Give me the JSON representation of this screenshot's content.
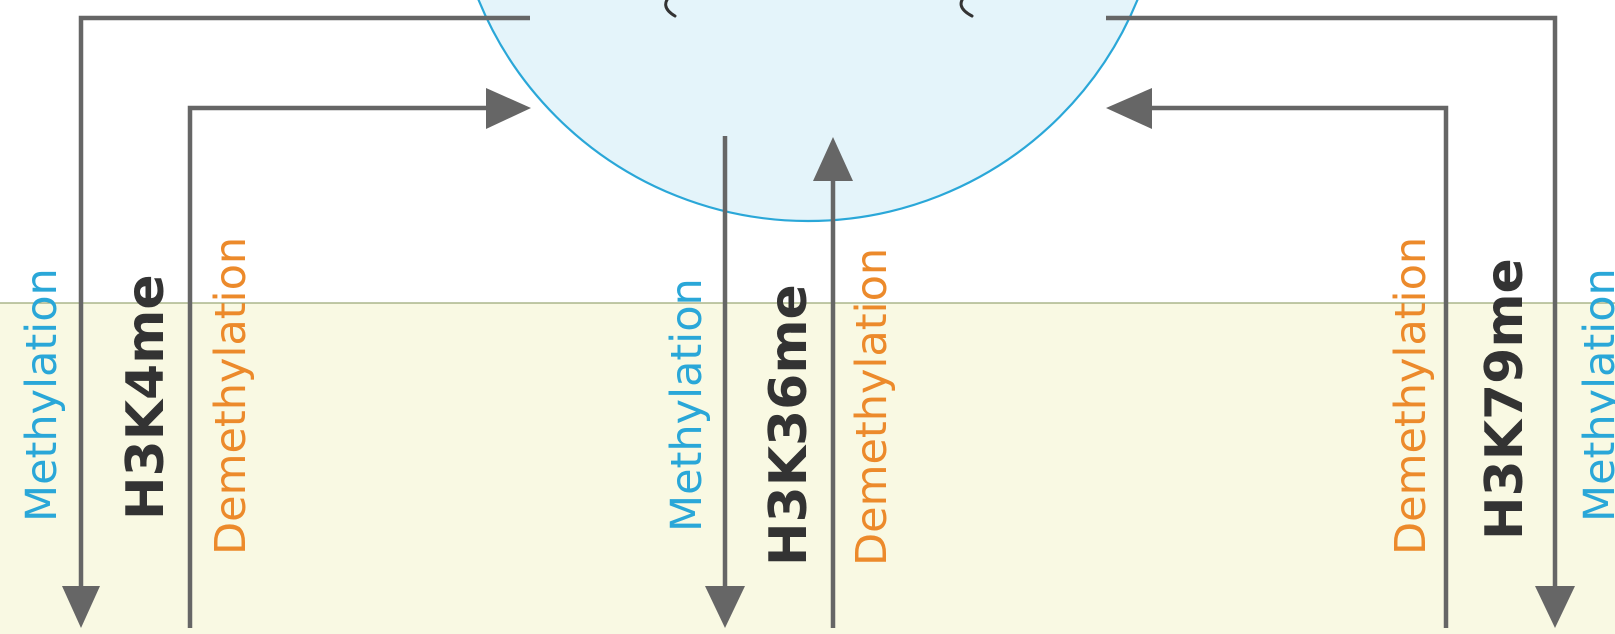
{
  "colors": {
    "background_top": "#ffffff",
    "background_bottom": "#f9f9e3",
    "divider": "#9aa978",
    "circle_fill": "#e4f4fa",
    "circle_stroke": "#2aa7d8",
    "arrow": "#666666",
    "methylation_text": "#2aa7d8",
    "demethylation_text": "#ec8a2b",
    "mark_text": "#333333"
  },
  "marks": {
    "h3k4": "H3K4me",
    "h3k36": "H3K36me",
    "h3k79": "H3K79me"
  },
  "labels": {
    "methylation": "Methylation",
    "demethylation": "Demethylation"
  }
}
